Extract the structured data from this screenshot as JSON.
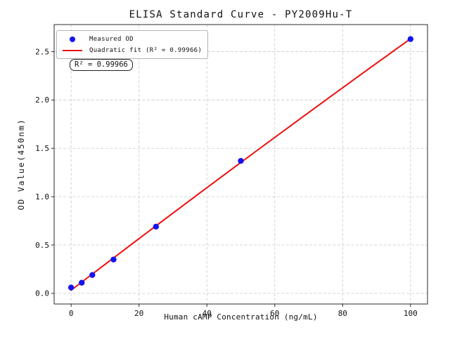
{
  "figure": {
    "title": "ELISA Standard Curve - PY2009Hu-T",
    "annotation": "R² = 0.99966"
  },
  "legend": {
    "position": "upper left",
    "items": [
      {
        "label": "Measured OD",
        "marker": "dot",
        "color": "#1414f0"
      },
      {
        "label": "Quadratic fit (R² = 0.99966)",
        "marker": "line",
        "color": "#ee0e0e"
      }
    ]
  },
  "chart_data": {
    "type": "scatter",
    "title": "ELISA Standard Curve - PY2009Hu-T",
    "xlabel": "Human cAMP Concentration (ng/mL)",
    "ylabel": "OD Value(450nm)",
    "x": [
      0,
      3.125,
      6.25,
      12.5,
      25,
      50,
      100
    ],
    "y": [
      0.06,
      0.11,
      0.19,
      0.35,
      0.69,
      1.37,
      2.63
    ],
    "series": [
      {
        "name": "Measured OD",
        "type": "scatter"
      },
      {
        "name": "Quadratic fit (R² = 0.99966)",
        "type": "line-fit",
        "fit": "quadratic",
        "r_squared": 0.99966
      }
    ],
    "xlim": [
      -5,
      105
    ],
    "ylim": [
      -0.11,
      2.78
    ],
    "x_ticks": [
      0,
      20,
      40,
      60,
      80,
      100
    ],
    "x_tick_labels": [
      "0",
      "20",
      "40",
      "60",
      "80",
      "100"
    ],
    "y_ticks": [
      0.0,
      0.5,
      1.0,
      1.5,
      2.0,
      2.5
    ],
    "y_tick_labels": [
      "0.0",
      "0.5",
      "1.0",
      "1.5",
      "2.0",
      "2.5"
    ],
    "grid": true,
    "grid_style": "dashed",
    "grid_color": "#c9c9c9",
    "point_color": "#1414f0",
    "line_color": "#ee0e0e",
    "spine_color": "#2a2a2a"
  }
}
